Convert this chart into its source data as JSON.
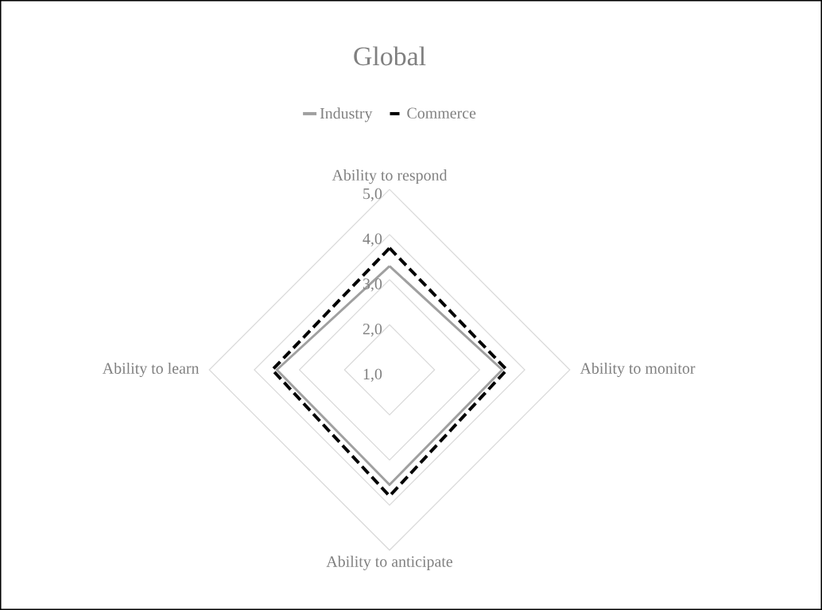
{
  "chart_data": {
    "type": "radar",
    "title": "Global",
    "categories": [
      "Ability to respond",
      "Ability to monitor",
      "Ability to anticipate",
      "Ability to learn"
    ],
    "series": [
      {
        "name": "Industry",
        "color": "#a0a0a0",
        "line_style": "solid",
        "values": [
          3.3,
          3.5,
          3.55,
          3.5
        ]
      },
      {
        "name": "Commerce",
        "color": "#000000",
        "line_style": "dashed",
        "values": [
          3.7,
          3.6,
          3.8,
          3.6
        ]
      }
    ],
    "ylim": [
      1,
      5
    ],
    "yticks": [
      {
        "value": 1,
        "label": "1,0"
      },
      {
        "value": 2,
        "label": "2,0"
      },
      {
        "value": 3,
        "label": "3,0"
      },
      {
        "value": 4,
        "label": "4,0"
      },
      {
        "value": 5,
        "label": "5,0"
      }
    ],
    "legend": "top",
    "grid": true,
    "marker": "none"
  }
}
